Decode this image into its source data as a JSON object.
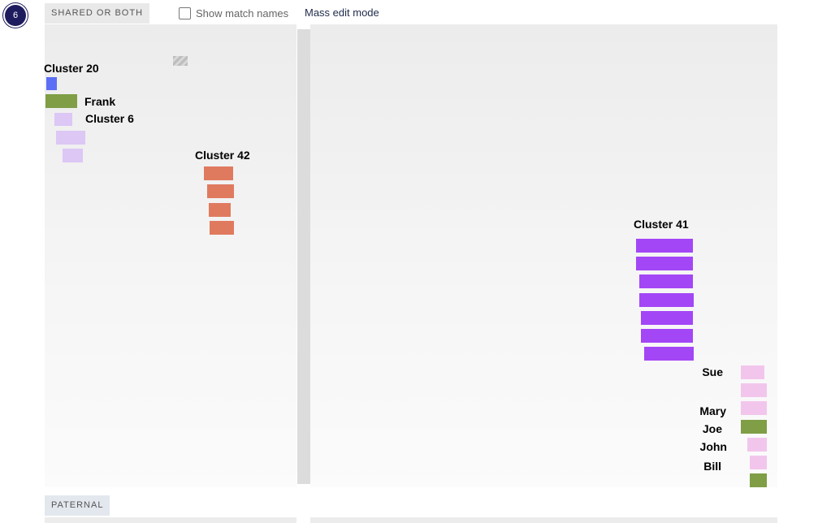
{
  "badge": {
    "count": "6"
  },
  "header": {
    "section_label": "SHARED OR BOTH",
    "show_match_names_label": "Show match names",
    "show_match_names_checked": false,
    "mass_edit_label": "Mass edit mode"
  },
  "clusters": {
    "cluster20": "Cluster 20",
    "frank": "Frank",
    "cluster6": "Cluster 6",
    "cluster42": "Cluster 42",
    "cluster41": "Cluster 41",
    "sue": "Sue",
    "mary": "Mary",
    "joe": "Joe",
    "john": "John",
    "bill": "Bill"
  },
  "colors": {
    "blue": "#5b6ef5",
    "olive": "#7f9e45",
    "lavender": "#dcc7f5",
    "salmon": "#e07a5f",
    "purple": "#a346f6",
    "pink": "#f2c6ec",
    "hatched": "#c8c8c8"
  },
  "footer": {
    "section_label": "PATERNAL"
  }
}
